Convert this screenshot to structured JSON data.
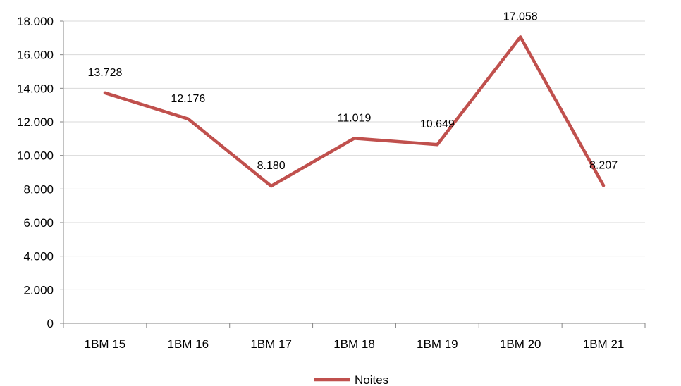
{
  "chart_data": {
    "type": "line",
    "categories": [
      "1BM 15",
      "1BM 16",
      "1BM 17",
      "1BM 18",
      "1BM 19",
      "1BM 20",
      "1BM 21"
    ],
    "series": [
      {
        "name": "Noites",
        "values": [
          13728,
          12176,
          8180,
          11019,
          10649,
          17058,
          8207
        ],
        "value_labels": [
          "13.728",
          "12.176",
          "8.180",
          "11.019",
          "10.649",
          "17.058",
          "8.207"
        ],
        "color": "#C0504D"
      }
    ],
    "y_ticks": [
      {
        "value": 0,
        "label": "0"
      },
      {
        "value": 2000,
        "label": "2.000"
      },
      {
        "value": 4000,
        "label": "4.000"
      },
      {
        "value": 6000,
        "label": "6.000"
      },
      {
        "value": 8000,
        "label": "8.000"
      },
      {
        "value": 10000,
        "label": "10.000"
      },
      {
        "value": 12000,
        "label": "12.000"
      },
      {
        "value": 14000,
        "label": "14.000"
      },
      {
        "value": 16000,
        "label": "16.000"
      },
      {
        "value": 18000,
        "label": "18.000"
      }
    ],
    "ylim": [
      0,
      18000
    ],
    "grid": true,
    "gridline_color": "#D9D9D9",
    "axis_color": "#868686",
    "legend_position": "bottom"
  }
}
